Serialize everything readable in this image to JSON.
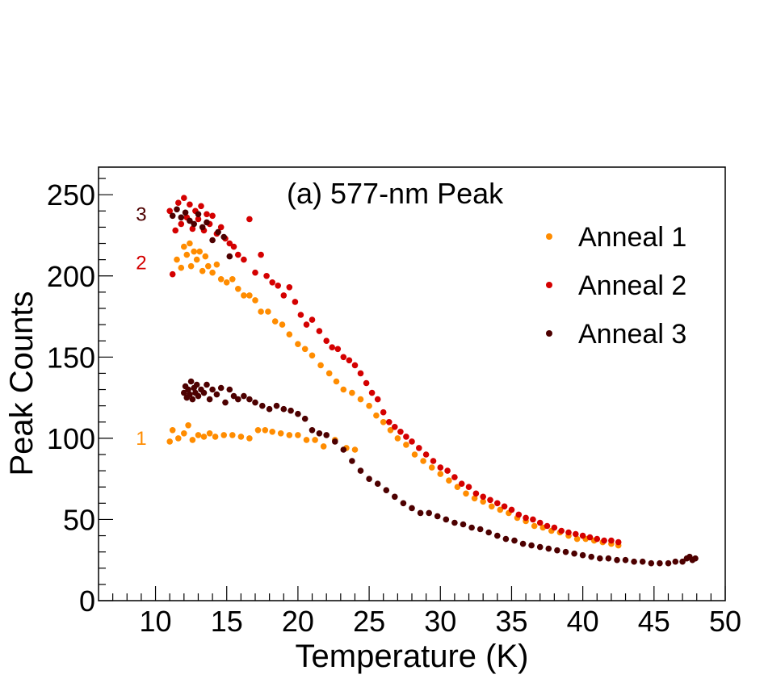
{
  "chart_data": {
    "type": "scatter",
    "title": "(a) 577-nm Peak",
    "xlabel": "Temperature (K)",
    "ylabel": "Peak Counts",
    "xlim": [
      6,
      50
    ],
    "ylim": [
      0,
      267
    ],
    "x_ticks": [
      "10",
      "15",
      "20",
      "25",
      "30",
      "35",
      "40",
      "45",
      "50"
    ],
    "y_ticks": [
      "0",
      "50",
      "100",
      "150",
      "200",
      "250"
    ],
    "grid": false,
    "legend_position": "top-right",
    "series": [
      {
        "name": "Anneal 1",
        "color": "#ff8c00",
        "label": "1",
        "points": [
          [
            11.0,
            98
          ],
          [
            11.2,
            105
          ],
          [
            11.6,
            100
          ],
          [
            12.0,
            103
          ],
          [
            12.3,
            108
          ],
          [
            12.6,
            99
          ],
          [
            13.0,
            102
          ],
          [
            13.4,
            101
          ],
          [
            13.8,
            103
          ],
          [
            14.2,
            101
          ],
          [
            14.8,
            102
          ],
          [
            15.4,
            102
          ],
          [
            16.0,
            101
          ],
          [
            16.6,
            100
          ],
          [
            17.2,
            105
          ],
          [
            17.7,
            105
          ],
          [
            18.2,
            104
          ],
          [
            18.8,
            103
          ],
          [
            19.4,
            102
          ],
          [
            20.0,
            102
          ],
          [
            20.6,
            99
          ],
          [
            21.2,
            99
          ],
          [
            21.8,
            95
          ],
          [
            22.6,
            99
          ],
          [
            23.4,
            94
          ],
          [
            24.0,
            93
          ],
          [
            11.5,
            210
          ],
          [
            11.8,
            205
          ],
          [
            12.0,
            218
          ],
          [
            12.2,
            213
          ],
          [
            12.4,
            220
          ],
          [
            12.5,
            206
          ],
          [
            12.7,
            215
          ],
          [
            12.9,
            210
          ],
          [
            13.1,
            215
          ],
          [
            13.3,
            203
          ],
          [
            13.5,
            212
          ],
          [
            13.7,
            206
          ],
          [
            14.0,
            202
          ],
          [
            14.3,
            207
          ],
          [
            14.6,
            198
          ],
          [
            15.0,
            196
          ],
          [
            15.4,
            198
          ],
          [
            15.8,
            192
          ],
          [
            16.2,
            188
          ],
          [
            16.6,
            188
          ],
          [
            17.0,
            185
          ],
          [
            17.4,
            178
          ],
          [
            17.9,
            178
          ],
          [
            18.4,
            172
          ],
          [
            18.9,
            170
          ],
          [
            19.4,
            164
          ],
          [
            20.0,
            158
          ],
          [
            20.5,
            155
          ],
          [
            21.0,
            151
          ],
          [
            21.6,
            145
          ],
          [
            22.2,
            140
          ],
          [
            22.7,
            135
          ],
          [
            23.2,
            130
          ],
          [
            23.8,
            128
          ],
          [
            24.4,
            124
          ],
          [
            25.0,
            120
          ],
          [
            25.5,
            114
          ],
          [
            26.0,
            110
          ],
          [
            26.5,
            105
          ],
          [
            27.0,
            100
          ],
          [
            27.6,
            96
          ],
          [
            28.2,
            90
          ],
          [
            28.8,
            86
          ],
          [
            29.4,
            82
          ],
          [
            30.0,
            78
          ],
          [
            30.6,
            74
          ],
          [
            31.2,
            70
          ],
          [
            31.8,
            66
          ],
          [
            32.4,
            63
          ],
          [
            33.0,
            61
          ],
          [
            33.6,
            58
          ],
          [
            34.2,
            56
          ],
          [
            34.8,
            54
          ],
          [
            35.4,
            51
          ],
          [
            36.0,
            49
          ],
          [
            36.6,
            46
          ],
          [
            37.2,
            45
          ],
          [
            37.8,
            43
          ],
          [
            38.4,
            42
          ],
          [
            39.0,
            40
          ],
          [
            39.6,
            38
          ],
          [
            40.2,
            38
          ],
          [
            40.8,
            37
          ],
          [
            41.4,
            36
          ],
          [
            42.0,
            35
          ],
          [
            42.5,
            34
          ]
        ]
      },
      {
        "name": "Anneal 2",
        "color": "#d40000",
        "label": "2",
        "points": [
          [
            11.0,
            240
          ],
          [
            11.2,
            201
          ],
          [
            11.4,
            228
          ],
          [
            11.6,
            245
          ],
          [
            11.8,
            232
          ],
          [
            12.0,
            248
          ],
          [
            12.2,
            236
          ],
          [
            12.4,
            244
          ],
          [
            12.6,
            229
          ],
          [
            12.8,
            240
          ],
          [
            13.0,
            235
          ],
          [
            13.2,
            243
          ],
          [
            13.4,
            228
          ],
          [
            13.6,
            238
          ],
          [
            13.8,
            232
          ],
          [
            14.0,
            237
          ],
          [
            14.3,
            226
          ],
          [
            14.6,
            230
          ],
          [
            14.9,
            223
          ],
          [
            15.2,
            220
          ],
          [
            15.5,
            218
          ],
          [
            15.8,
            213
          ],
          [
            16.2,
            210
          ],
          [
            16.6,
            235
          ],
          [
            17.0,
            202
          ],
          [
            17.4,
            213
          ],
          [
            17.8,
            200
          ],
          [
            18.2,
            196
          ],
          [
            18.6,
            194
          ],
          [
            19.0,
            188
          ],
          [
            19.4,
            193
          ],
          [
            19.8,
            184
          ],
          [
            20.2,
            176
          ],
          [
            20.6,
            170
          ],
          [
            21.0,
            173
          ],
          [
            21.5,
            166
          ],
          [
            22.0,
            160
          ],
          [
            22.4,
            156
          ],
          [
            22.8,
            155
          ],
          [
            23.2,
            150
          ],
          [
            23.6,
            148
          ],
          [
            24.0,
            145
          ],
          [
            24.4,
            140
          ],
          [
            24.8,
            134
          ],
          [
            25.2,
            128
          ],
          [
            25.6,
            124
          ],
          [
            26.0,
            116
          ],
          [
            26.4,
            110
          ],
          [
            26.8,
            107
          ],
          [
            27.2,
            104
          ],
          [
            27.6,
            101
          ],
          [
            28.0,
            98
          ],
          [
            28.5,
            94
          ],
          [
            29.0,
            90
          ],
          [
            29.5,
            86
          ],
          [
            30.0,
            82
          ],
          [
            30.5,
            80
          ],
          [
            31.0,
            76
          ],
          [
            31.5,
            72
          ],
          [
            32.0,
            70
          ],
          [
            32.5,
            66
          ],
          [
            33.0,
            64
          ],
          [
            33.5,
            62
          ],
          [
            34.0,
            60
          ],
          [
            34.5,
            58
          ],
          [
            35.0,
            56
          ],
          [
            35.5,
            53
          ],
          [
            36.0,
            51
          ],
          [
            36.5,
            50
          ],
          [
            37.0,
            48
          ],
          [
            37.5,
            46
          ],
          [
            38.0,
            45
          ],
          [
            38.5,
            43
          ],
          [
            39.0,
            42
          ],
          [
            39.5,
            41
          ],
          [
            40.0,
            40
          ],
          [
            40.5,
            39
          ],
          [
            41.0,
            38
          ],
          [
            41.5,
            37
          ],
          [
            42.0,
            37
          ],
          [
            42.5,
            36
          ]
        ]
      },
      {
        "name": "Anneal 3",
        "color": "#4d0000",
        "label": "3",
        "points": [
          [
            11.2,
            237
          ],
          [
            11.5,
            241
          ],
          [
            11.8,
            236
          ],
          [
            12.1,
            239
          ],
          [
            12.4,
            234
          ],
          [
            12.7,
            232
          ],
          [
            13.0,
            238
          ],
          [
            13.3,
            230
          ],
          [
            13.6,
            233
          ],
          [
            14.0,
            222
          ],
          [
            14.4,
            227
          ],
          [
            14.8,
            224
          ],
          [
            15.2,
            212
          ],
          [
            12.0,
            128
          ],
          [
            12.1,
            132
          ],
          [
            12.2,
            125
          ],
          [
            12.3,
            130
          ],
          [
            12.4,
            127
          ],
          [
            12.5,
            135
          ],
          [
            12.6,
            124
          ],
          [
            12.7,
            131
          ],
          [
            12.8,
            128
          ],
          [
            12.9,
            133
          ],
          [
            13.0,
            126
          ],
          [
            13.2,
            130
          ],
          [
            13.4,
            128
          ],
          [
            13.6,
            133
          ],
          [
            13.8,
            124
          ],
          [
            14.0,
            130
          ],
          [
            14.3,
            127
          ],
          [
            14.6,
            131
          ],
          [
            14.9,
            122
          ],
          [
            15.2,
            130
          ],
          [
            15.5,
            126
          ],
          [
            15.8,
            124
          ],
          [
            16.2,
            126
          ],
          [
            16.6,
            124
          ],
          [
            17.0,
            122
          ],
          [
            17.5,
            120
          ],
          [
            18.0,
            118
          ],
          [
            18.5,
            120
          ],
          [
            19.0,
            118
          ],
          [
            19.5,
            117
          ],
          [
            20.0,
            115
          ],
          [
            20.5,
            112
          ],
          [
            21.0,
            105
          ],
          [
            21.5,
            103
          ],
          [
            22.0,
            102
          ],
          [
            22.6,
            98
          ],
          [
            23.2,
            93
          ],
          [
            23.8,
            86
          ],
          [
            24.4,
            80
          ],
          [
            25.0,
            75
          ],
          [
            25.6,
            72
          ],
          [
            26.2,
            68
          ],
          [
            26.8,
            64
          ],
          [
            27.4,
            60
          ],
          [
            28.0,
            57
          ],
          [
            28.6,
            54
          ],
          [
            29.2,
            54
          ],
          [
            29.8,
            52
          ],
          [
            30.4,
            50
          ],
          [
            31.0,
            48
          ],
          [
            31.6,
            47
          ],
          [
            32.2,
            45
          ],
          [
            32.8,
            44
          ],
          [
            33.4,
            42
          ],
          [
            34.0,
            40
          ],
          [
            34.6,
            38
          ],
          [
            35.2,
            37
          ],
          [
            35.8,
            35
          ],
          [
            36.4,
            34
          ],
          [
            37.0,
            33
          ],
          [
            37.6,
            32
          ],
          [
            38.2,
            31
          ],
          [
            38.8,
            30
          ],
          [
            39.4,
            29
          ],
          [
            40.0,
            28
          ],
          [
            40.6,
            27
          ],
          [
            41.2,
            26
          ],
          [
            41.8,
            26
          ],
          [
            42.4,
            25
          ],
          [
            43.0,
            25
          ],
          [
            43.6,
            24
          ],
          [
            44.2,
            24
          ],
          [
            44.8,
            23
          ],
          [
            45.4,
            23
          ],
          [
            46.0,
            23
          ],
          [
            46.5,
            24
          ],
          [
            47.0,
            24
          ],
          [
            47.3,
            26
          ],
          [
            47.5,
            27
          ],
          [
            47.7,
            25
          ],
          [
            47.9,
            26
          ]
        ]
      }
    ]
  }
}
